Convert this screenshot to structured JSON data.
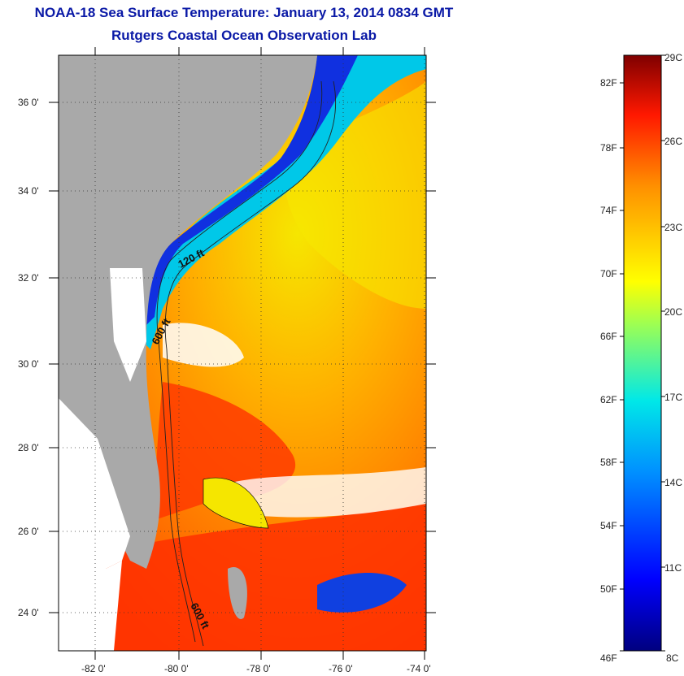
{
  "header": {
    "title": "NOAA-18 Sea Surface Temperature:  January 13, 2014 0834 GMT",
    "subtitle": "Rutgers Coastal Ocean Observation Lab"
  },
  "map": {
    "lat_labels": [
      "36 0'",
      "34 0'",
      "32 0'",
      "30 0'",
      "28 0'",
      "26 0'",
      "24 0'"
    ],
    "lon_labels": [
      "-82 0'",
      "-80 0'",
      "-78 0'",
      "-76 0'",
      "-74 0'"
    ],
    "contour_labels": [
      "120 ft",
      "600 ft",
      "600 ft"
    ],
    "colors": {
      "land": "#a9a9a9",
      "cloud": "#ffffff",
      "warm": "#ff5a00",
      "cool": "#1440e0"
    }
  },
  "colorbar": {
    "fahrenheit": [
      "82F",
      "78F",
      "74F",
      "70F",
      "66F",
      "62F",
      "58F",
      "54F",
      "50F",
      "46F"
    ],
    "celsius": [
      "29C",
      "26C",
      "23C",
      "20C",
      "17C",
      "14C",
      "11C",
      "8C"
    ]
  }
}
